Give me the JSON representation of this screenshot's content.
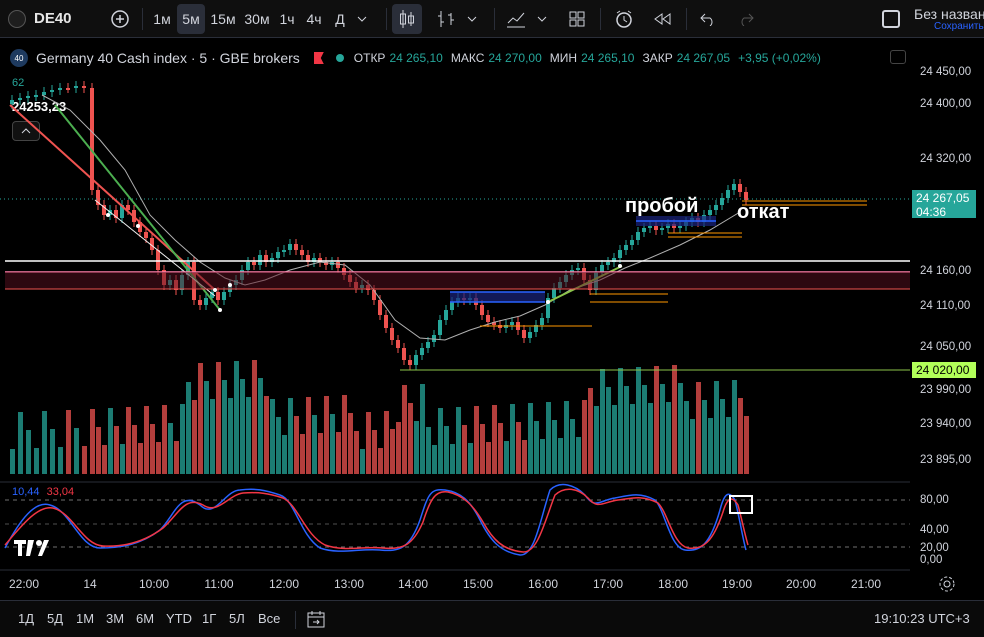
{
  "toolbar": {
    "symbol": "DE40",
    "symbol_badge": "40",
    "intervals": [
      "1м",
      "5м",
      "15м",
      "30м",
      "1ч",
      "4ч",
      "Д"
    ],
    "active_interval": "5м",
    "layout_name": "Без назван",
    "layout_status": "Сохранить"
  },
  "legend": {
    "title": "Germany 40 Cash index · 5 · GBE brokers",
    "open_label": "ОТКР",
    "open": "24 265,10",
    "high_label": "МАКС",
    "high": "24 270,00",
    "low_label": "МИН",
    "low": "24 265,10",
    "close_label": "ЗАКР",
    "close": "24 267,05",
    "change": "+3,95 (+0,02%)",
    "ma_period": "62",
    "last_marker": "24253,23"
  },
  "price_axis": {
    "labels": [
      "24 450,00",
      "24 400,00",
      "24 320,00",
      "24 160,00",
      "24 110,00",
      "24 050,00",
      "23 990,00",
      "23 940,00",
      "23 895,00"
    ],
    "current_price": "24 267,05",
    "countdown": "04:36",
    "level_tag": "24 020,00"
  },
  "oscillator": {
    "k_value": "10,44",
    "d_value": "33,04",
    "labels": [
      "80,00",
      "40,00",
      "20,00",
      "0,00"
    ],
    "k_color": "#2962ff",
    "d_color": "#f23645"
  },
  "time_axis": {
    "labels": [
      "22:00",
      "14",
      "10:00",
      "11:00",
      "12:00",
      "13:00",
      "14:00",
      "15:00",
      "16:00",
      "17:00",
      "18:00",
      "19:00",
      "20:00",
      "21:00"
    ]
  },
  "annotations": {
    "breakout": "пробой",
    "pullback": "откат"
  },
  "bottom": {
    "ranges": [
      "1Д",
      "5Д",
      "1М",
      "3М",
      "6М",
      "YTD",
      "1Г",
      "5Л",
      "Все"
    ],
    "clock": "19:10:23 UTC+3"
  },
  "colors": {
    "up": "#26a69a",
    "down": "#ef5350",
    "background": "#000000"
  }
}
